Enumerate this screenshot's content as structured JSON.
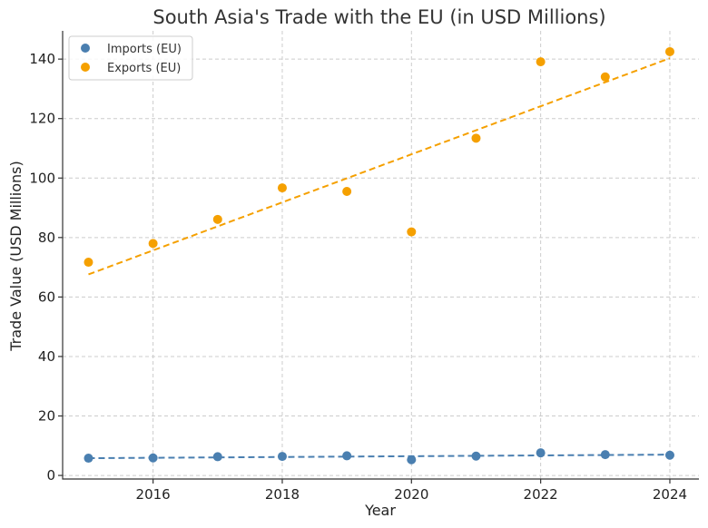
{
  "chart_data": {
    "type": "scatter",
    "title": "South Asia's Trade with the EU (in USD Millions)",
    "xlabel": "Year",
    "ylabel": "Trade Value (USD Millions)",
    "xlim": [
      2014.6,
      2024.45
    ],
    "ylim": [
      -1.2,
      149.5
    ],
    "x_ticks": [
      2016,
      2018,
      2020,
      2022,
      2024
    ],
    "y_ticks": [
      0,
      20,
      40,
      60,
      80,
      100,
      120,
      140
    ],
    "grid": true,
    "legend_position": "top-left",
    "x": [
      2015,
      2016,
      2017,
      2018,
      2019,
      2020,
      2021,
      2022,
      2023,
      2024
    ],
    "series": [
      {
        "name": "Imports (EU)",
        "color": "#4a7fb0",
        "values": [
          5.8,
          5.9,
          6.3,
          6.4,
          6.6,
          5.3,
          6.5,
          7.6,
          7.0,
          6.8
        ],
        "trendline": {
          "start": 5.8,
          "end": 7.0
        }
      },
      {
        "name": "Exports (EU)",
        "color": "#f5a000",
        "values": [
          71.7,
          78.0,
          86.1,
          96.7,
          95.5,
          81.9,
          113.4,
          139.1,
          134.0,
          142.5
        ],
        "trendline": {
          "start": 67.6,
          "end": 140.3
        }
      }
    ]
  }
}
